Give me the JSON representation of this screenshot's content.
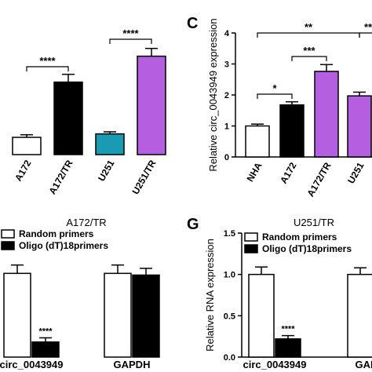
{
  "chart_data": [
    {
      "type": "bar",
      "categories": [
        "A172",
        "A172/TR",
        "U251",
        "U251/TR"
      ],
      "values": [
        1.0,
        4.2,
        1.2,
        5.7
      ],
      "errors": [
        0.15,
        0.45,
        0.12,
        0.45
      ],
      "colors": [
        "#ffffff",
        "#000000",
        "#1b9bb3",
        "#b45ee0"
      ],
      "ylim": [
        0,
        7
      ],
      "annotations": [
        "****",
        "****"
      ]
    },
    {
      "type": "bar",
      "panel_label": "C",
      "ylabel": "Relative circ_0043949 expression",
      "categories": [
        "NHA",
        "A172",
        "A172/TR",
        "U251"
      ],
      "values": [
        1.0,
        1.68,
        2.76,
        1.97
      ],
      "errors": [
        0.06,
        0.1,
        0.22,
        0.12
      ],
      "colors": [
        "#ffffff",
        "#000000",
        "#b45ee0",
        "#b45ee0"
      ],
      "ylim": [
        0,
        4
      ],
      "yticks": [
        0,
        1,
        2,
        3,
        4
      ],
      "annotations": [
        "*",
        "***",
        "**",
        "**"
      ]
    },
    {
      "type": "grouped_bar",
      "title": "A172/TR",
      "categories": [
        "circ_0043949",
        "GAPDH"
      ],
      "series": [
        {
          "name": "Random primers",
          "color": "#ffffff",
          "values": [
            1.0,
            1.0
          ],
          "errors": [
            0.1,
            0.1
          ]
        },
        {
          "name": "Oligo (dT)18primers",
          "color": "#000000",
          "values": [
            0.18,
            0.98
          ],
          "errors": [
            0.05,
            0.08
          ]
        }
      ],
      "ylim": [
        0,
        1.5
      ],
      "annotations": [
        "****"
      ]
    },
    {
      "type": "grouped_bar",
      "panel_label": "G",
      "title": "U251/TR",
      "ylabel": "Relative RNA expression",
      "categories": [
        "circ_0043949",
        "GAPDH"
      ],
      "series": [
        {
          "name": "Random primers",
          "color": "#ffffff",
          "values": [
            1.0,
            1.0
          ],
          "errors": [
            0.09,
            0.08
          ]
        },
        {
          "name": "Oligo (dT)18primers",
          "color": "#000000",
          "values": [
            0.22,
            1.0
          ],
          "errors": [
            0.04,
            0.08
          ]
        }
      ],
      "ylim": [
        0,
        1.5
      ],
      "yticks": [
        {
          "value": 0,
          "label": "0.0"
        },
        {
          "value": 0.5,
          "label": "0.5"
        },
        {
          "value": 1.0,
          "label": "1.0"
        },
        {
          "value": 1.5,
          "label": "1.5"
        }
      ],
      "annotations": [
        "****"
      ]
    }
  ]
}
